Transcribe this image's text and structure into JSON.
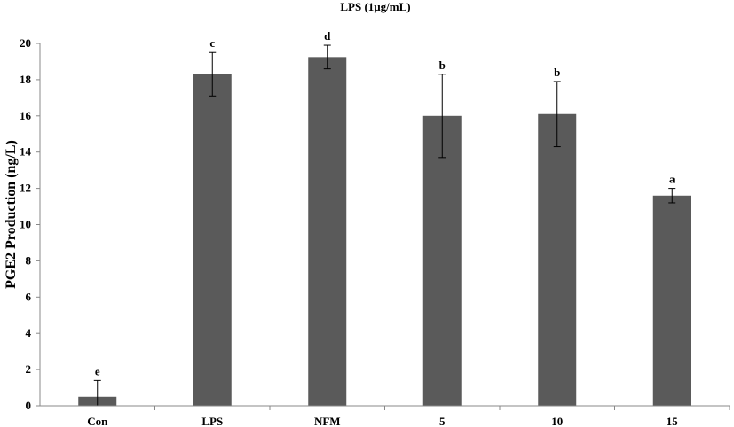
{
  "chart_data": {
    "type": "bar",
    "title": "LPS (1μg/mL)",
    "xlabel": "",
    "ylabel": "PGE2  Production (ng/L)",
    "categories": [
      "Con",
      "LPS",
      "NFM",
      "5",
      "10",
      "15"
    ],
    "values": [
      0.5,
      18.3,
      19.25,
      16.0,
      16.1,
      11.6
    ],
    "errors": [
      0.9,
      1.2,
      0.65,
      2.3,
      1.8,
      0.4
    ],
    "significance": [
      "e",
      "c",
      "d",
      "b",
      "b",
      "a"
    ],
    "ylim": [
      0,
      20
    ],
    "yticks": [
      "0",
      "2",
      "4",
      "6",
      "8",
      "10",
      "12",
      "14",
      "16",
      "18",
      "20"
    ],
    "bar_color": "#5a5a5a",
    "grid": false,
    "legend": "none"
  }
}
